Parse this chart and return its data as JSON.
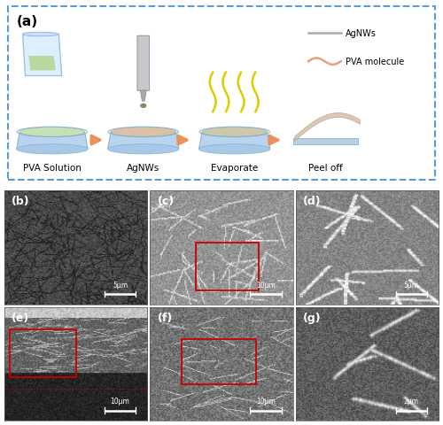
{
  "fig_width": 5.0,
  "fig_height": 4.81,
  "dpi": 100,
  "background_color": "#ffffff",
  "panel_a": {
    "label": "(a)",
    "border_color": "#5b9bd5",
    "bg_color": "#ffffff",
    "steps": [
      "PVA Solution",
      "AgNWs",
      "Evaporate",
      "Peel off"
    ],
    "legend_items": [
      "AgNWs",
      "PVA molecule"
    ],
    "legend_colors": [
      "#aaaaaa",
      "#e8a07a"
    ]
  },
  "panels_bottom": {
    "labels": [
      "(b)",
      "(c)",
      "(d)",
      "(e)",
      "(f)",
      "(g)"
    ],
    "scale_bars": [
      "5μm",
      "10μm",
      "5μm",
      "10μm",
      "10μm",
      "2μm"
    ],
    "bg_color": "#404040",
    "label_color": "#ffffff",
    "scalebar_color": "#ffffff"
  },
  "arrow_color": "#e8935a",
  "zoom_box_color": "#cc0000"
}
